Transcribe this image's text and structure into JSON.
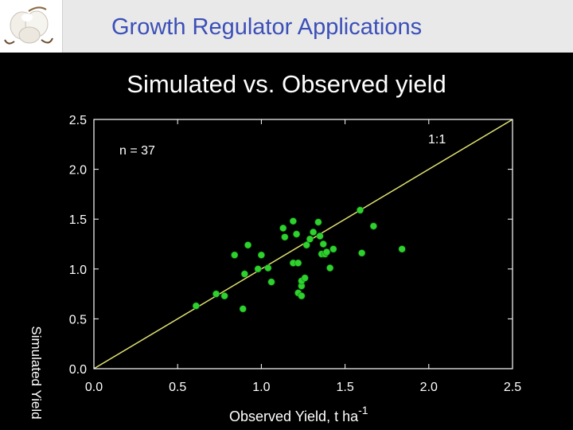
{
  "header": {
    "title": "Growth Regulator Applications",
    "logo_icon": "cotton-boll-icon"
  },
  "chart_data": {
    "type": "scatter",
    "title": "Simulated vs. Observed yield",
    "xlabel": "Observed Yield, t ha",
    "xlabel_superscript": "-1",
    "ylabel": "Simulated Yield",
    "xlim": [
      0,
      2.5
    ],
    "ylim": [
      0,
      2.5
    ],
    "xticks": [
      "0.0",
      "0.5",
      "1.0",
      "1.5",
      "2.0",
      "2.5"
    ],
    "yticks": [
      "0.0",
      "0.5",
      "1.0",
      "1.5",
      "2.0",
      "2.5"
    ],
    "grid": false,
    "annotations": {
      "n_label": "n = 37",
      "line_label": "1:1"
    },
    "reference_line": {
      "from": [
        0,
        0
      ],
      "to": [
        2.5,
        2.5
      ],
      "color": "#e0e070"
    },
    "colors": {
      "points": "#2ed12e",
      "axes": "#ffffff",
      "line": "#e0e070"
    },
    "points": [
      [
        0.61,
        0.63
      ],
      [
        0.73,
        0.75
      ],
      [
        0.78,
        0.73
      ],
      [
        0.84,
        1.14
      ],
      [
        0.89,
        0.6
      ],
      [
        0.9,
        0.95
      ],
      [
        0.92,
        1.24
      ],
      [
        0.98,
        1.0
      ],
      [
        1.0,
        1.14
      ],
      [
        1.04,
        1.01
      ],
      [
        1.06,
        0.87
      ],
      [
        1.13,
        1.41
      ],
      [
        1.14,
        1.32
      ],
      [
        1.19,
        1.48
      ],
      [
        1.19,
        1.06
      ],
      [
        1.21,
        1.35
      ],
      [
        1.22,
        1.06
      ],
      [
        1.22,
        0.76
      ],
      [
        1.24,
        0.73
      ],
      [
        1.24,
        0.83
      ],
      [
        1.24,
        0.88
      ],
      [
        1.26,
        0.91
      ],
      [
        1.27,
        1.24
      ],
      [
        1.29,
        1.3
      ],
      [
        1.31,
        1.37
      ],
      [
        1.34,
        1.47
      ],
      [
        1.35,
        1.33
      ],
      [
        1.36,
        1.15
      ],
      [
        1.37,
        1.25
      ],
      [
        1.38,
        1.15
      ],
      [
        1.39,
        1.17
      ],
      [
        1.41,
        1.01
      ],
      [
        1.43,
        1.2
      ],
      [
        1.59,
        1.59
      ],
      [
        1.6,
        1.16
      ],
      [
        1.67,
        1.43
      ],
      [
        1.84,
        1.2
      ]
    ]
  }
}
